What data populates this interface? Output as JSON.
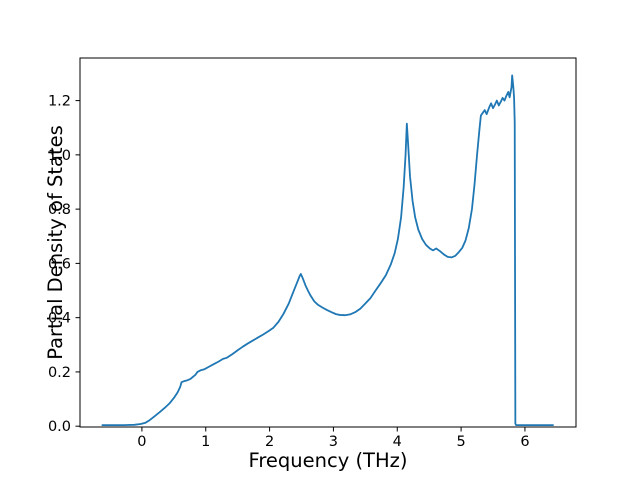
{
  "figure": {
    "background": "#ffffff",
    "axes_edge_color": "#000000",
    "text_color": "#000000"
  },
  "chart_data": {
    "type": "line",
    "title": "",
    "xlabel": "Frequency (THz)",
    "ylabel": "Partial Density of States",
    "xlim": [
      -0.97,
      6.8
    ],
    "ylim": [
      -0.003,
      1.357
    ],
    "xticks": [
      0,
      1,
      2,
      3,
      4,
      5,
      6
    ],
    "xtick_labels": [
      "0",
      "1",
      "2",
      "3",
      "4",
      "5",
      "6"
    ],
    "yticks": [
      0.0,
      0.2,
      0.4,
      0.6,
      0.8,
      1.0,
      1.2
    ],
    "ytick_labels": [
      "0.0",
      "0.2",
      "0.4",
      "0.6",
      "0.8",
      "1.0",
      "1.2"
    ],
    "grid": false,
    "legend": null,
    "line_color": "#1f77b4",
    "line_width": 1.8,
    "series": [
      {
        "name": "partial-density-of-states",
        "x": [
          -0.62,
          -0.45,
          -0.28,
          -0.12,
          -0.02,
          0.05,
          0.12,
          0.2,
          0.28,
          0.36,
          0.44,
          0.51,
          0.56,
          0.6,
          0.62,
          0.66,
          0.71,
          0.76,
          0.8,
          0.84,
          0.87,
          0.92,
          0.98,
          1.05,
          1.12,
          1.2,
          1.27,
          1.33,
          1.42,
          1.5,
          1.58,
          1.66,
          1.74,
          1.82,
          1.9,
          1.98,
          2.06,
          2.14,
          2.22,
          2.3,
          2.38,
          2.44,
          2.47,
          2.49,
          2.52,
          2.56,
          2.6,
          2.64,
          2.7,
          2.76,
          2.83,
          2.9,
          2.97,
          3.04,
          3.1,
          3.18,
          3.26,
          3.34,
          3.42,
          3.5,
          3.58,
          3.66,
          3.74,
          3.82,
          3.9,
          3.96,
          4.01,
          4.06,
          4.1,
          4.13,
          4.15,
          4.17,
          4.2,
          4.24,
          4.28,
          4.33,
          4.39,
          4.45,
          4.51,
          4.56,
          4.61,
          4.67,
          4.73,
          4.79,
          4.85,
          4.91,
          4.97,
          5.02,
          5.07,
          5.12,
          5.17,
          5.21,
          5.25,
          5.29,
          5.31,
          5.34,
          5.37,
          5.4,
          5.44,
          5.47,
          5.5,
          5.53,
          5.56,
          5.59,
          5.62,
          5.65,
          5.68,
          5.71,
          5.74,
          5.76,
          5.79,
          5.8,
          5.82,
          5.83,
          5.84,
          5.85,
          5.86,
          6.0,
          6.15,
          6.3,
          6.44
        ],
        "y": [
          0.004,
          0.004,
          0.004,
          0.005,
          0.008,
          0.012,
          0.022,
          0.037,
          0.052,
          0.068,
          0.086,
          0.107,
          0.125,
          0.145,
          0.162,
          0.166,
          0.169,
          0.174,
          0.182,
          0.19,
          0.2,
          0.206,
          0.21,
          0.219,
          0.228,
          0.238,
          0.248,
          0.252,
          0.266,
          0.28,
          0.293,
          0.305,
          0.316,
          0.327,
          0.338,
          0.35,
          0.363,
          0.385,
          0.415,
          0.452,
          0.5,
          0.535,
          0.553,
          0.561,
          0.545,
          0.52,
          0.5,
          0.482,
          0.46,
          0.447,
          0.437,
          0.428,
          0.42,
          0.413,
          0.41,
          0.409,
          0.412,
          0.42,
          0.433,
          0.452,
          0.472,
          0.5,
          0.527,
          0.556,
          0.597,
          0.638,
          0.69,
          0.77,
          0.88,
          1.0,
          1.115,
          1.04,
          0.92,
          0.83,
          0.77,
          0.724,
          0.69,
          0.668,
          0.655,
          0.648,
          0.655,
          0.645,
          0.633,
          0.624,
          0.622,
          0.628,
          0.643,
          0.658,
          0.685,
          0.73,
          0.8,
          0.89,
          1.0,
          1.1,
          1.145,
          1.155,
          1.165,
          1.15,
          1.175,
          1.19,
          1.172,
          1.185,
          1.2,
          1.182,
          1.195,
          1.21,
          1.2,
          1.218,
          1.232,
          1.212,
          1.25,
          1.293,
          1.245,
          1.21,
          1.12,
          0.01,
          0.004,
          0.004,
          0.004,
          0.004,
          0.004
        ]
      }
    ]
  }
}
